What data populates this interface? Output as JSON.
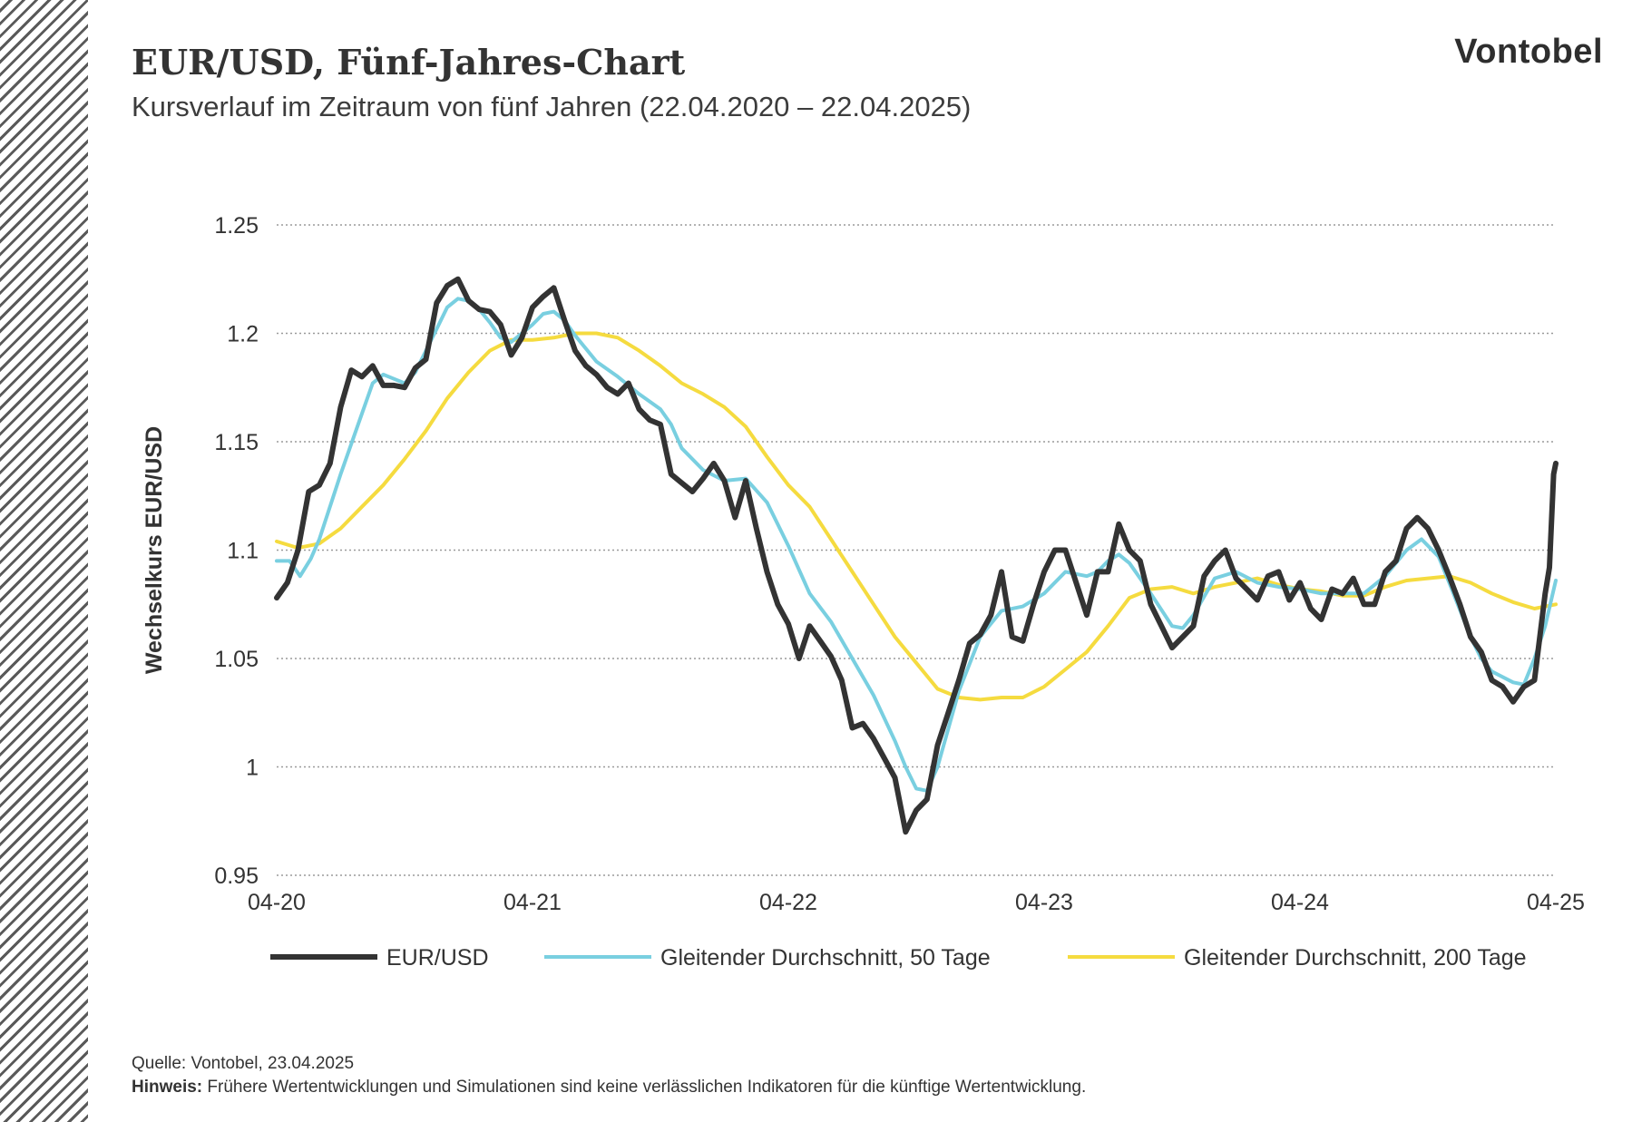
{
  "header": {
    "title": "EUR/USD, Fünf-Jahres-Chart",
    "subtitle": "Kursverlauf im Zeitraum von fünf Jahren (22.04.2020 – 22.04.2025)",
    "brand": "Vontobel"
  },
  "footer": {
    "source_label": "Quelle:",
    "source_text": "Vontobel, 23.04.2025",
    "note_label": "Hinweis:",
    "note_text": "Frühere Wertentwicklungen und Simulationen sind keine verlässlichen Indikatoren für die künftige Wertentwicklung."
  },
  "colors": {
    "eurusd": "#333333",
    "ma50": "#79cfe0",
    "ma200": "#f5db3f",
    "grid": "#9a9a9a",
    "hatch": "#5a5a5a"
  },
  "chart_data": {
    "type": "line",
    "ylabel": "Wechselkurs EUR/USD",
    "ylim": [
      0.95,
      1.25
    ],
    "yticks": [
      1.25,
      1.2,
      1.15,
      1.1,
      1.05,
      1,
      0.95
    ],
    "ytick_labels": [
      "1.25",
      "1.2",
      "1.15",
      "1.1",
      "1.05",
      "1",
      "0.95"
    ],
    "xlim": [
      0,
      60
    ],
    "xticks": [
      0,
      12,
      24,
      36,
      48,
      60
    ],
    "xtick_labels": [
      "04-20",
      "04-21",
      "04-22",
      "04-23",
      "04-24",
      "04-25"
    ],
    "grid": "horizontal dotted",
    "legend_position": "bottom",
    "series": [
      {
        "name": "EUR/USD",
        "color_key": "eurusd",
        "points": [
          [
            0,
            1.078
          ],
          [
            0.5,
            1.085
          ],
          [
            1,
            1.1
          ],
          [
            1.5,
            1.127
          ],
          [
            2,
            1.13
          ],
          [
            2.5,
            1.14
          ],
          [
            3,
            1.166
          ],
          [
            3.5,
            1.183
          ],
          [
            4,
            1.18
          ],
          [
            4.5,
            1.185
          ],
          [
            5,
            1.176
          ],
          [
            5.5,
            1.176
          ],
          [
            6,
            1.175
          ],
          [
            6.5,
            1.184
          ],
          [
            7,
            1.188
          ],
          [
            7.5,
            1.214
          ],
          [
            8,
            1.222
          ],
          [
            8.5,
            1.225
          ],
          [
            9,
            1.215
          ],
          [
            9.5,
            1.211
          ],
          [
            10,
            1.21
          ],
          [
            10.5,
            1.204
          ],
          [
            11,
            1.19
          ],
          [
            11.5,
            1.198
          ],
          [
            12,
            1.212
          ],
          [
            12.5,
            1.217
          ],
          [
            13,
            1.221
          ],
          [
            13.5,
            1.206
          ],
          [
            14,
            1.192
          ],
          [
            14.5,
            1.185
          ],
          [
            15,
            1.181
          ],
          [
            15.5,
            1.175
          ],
          [
            16,
            1.172
          ],
          [
            16.5,
            1.177
          ],
          [
            17,
            1.165
          ],
          [
            17.5,
            1.16
          ],
          [
            18,
            1.158
          ],
          [
            18.5,
            1.135
          ],
          [
            19,
            1.131
          ],
          [
            19.5,
            1.127
          ],
          [
            20,
            1.133
          ],
          [
            20.5,
            1.14
          ],
          [
            21,
            1.132
          ],
          [
            21.5,
            1.115
          ],
          [
            22,
            1.132
          ],
          [
            22.5,
            1.11
          ],
          [
            23,
            1.09
          ],
          [
            23.5,
            1.075
          ],
          [
            24,
            1.066
          ],
          [
            24.5,
            1.05
          ],
          [
            25,
            1.065
          ],
          [
            25.5,
            1.058
          ],
          [
            26,
            1.051
          ],
          [
            26.5,
            1.04
          ],
          [
            27,
            1.018
          ],
          [
            27.5,
            1.02
          ],
          [
            28,
            1.013
          ],
          [
            28.5,
            1.004
          ],
          [
            29,
            0.995
          ],
          [
            29.5,
            0.97
          ],
          [
            30,
            0.98
          ],
          [
            30.5,
            0.985
          ],
          [
            31,
            1.01
          ],
          [
            31.5,
            1.025
          ],
          [
            32,
            1.04
          ],
          [
            32.5,
            1.057
          ],
          [
            33,
            1.061
          ],
          [
            33.5,
            1.07
          ],
          [
            34,
            1.09
          ],
          [
            34.5,
            1.06
          ],
          [
            35,
            1.058
          ],
          [
            35.5,
            1.075
          ],
          [
            36,
            1.09
          ],
          [
            36.5,
            1.1
          ],
          [
            37,
            1.1
          ],
          [
            37.5,
            1.085
          ],
          [
            38,
            1.07
          ],
          [
            38.5,
            1.09
          ],
          [
            39,
            1.09
          ],
          [
            39.5,
            1.112
          ],
          [
            40,
            1.1
          ],
          [
            40.5,
            1.095
          ],
          [
            41,
            1.075
          ],
          [
            41.5,
            1.065
          ],
          [
            42,
            1.055
          ],
          [
            42.5,
            1.06
          ],
          [
            43,
            1.065
          ],
          [
            43.5,
            1.088
          ],
          [
            44,
            1.095
          ],
          [
            44.5,
            1.1
          ],
          [
            45,
            1.087
          ],
          [
            45.5,
            1.082
          ],
          [
            46,
            1.077
          ],
          [
            46.5,
            1.088
          ],
          [
            47,
            1.09
          ],
          [
            47.5,
            1.077
          ],
          [
            48,
            1.085
          ],
          [
            48.5,
            1.073
          ],
          [
            49,
            1.068
          ],
          [
            49.5,
            1.082
          ],
          [
            50,
            1.08
          ],
          [
            50.5,
            1.087
          ],
          [
            51,
            1.075
          ],
          [
            51.5,
            1.075
          ],
          [
            52,
            1.09
          ],
          [
            52.5,
            1.095
          ],
          [
            53,
            1.11
          ],
          [
            53.5,
            1.115
          ],
          [
            54,
            1.11
          ],
          [
            54.5,
            1.1
          ],
          [
            55,
            1.088
          ],
          [
            55.5,
            1.075
          ],
          [
            56,
            1.06
          ],
          [
            56.5,
            1.053
          ],
          [
            57,
            1.04
          ],
          [
            57.5,
            1.037
          ],
          [
            58,
            1.03
          ],
          [
            58.5,
            1.037
          ],
          [
            59,
            1.04
          ],
          [
            59.5,
            1.08
          ],
          [
            59.7,
            1.092
          ],
          [
            59.9,
            1.135
          ],
          [
            60,
            1.14
          ]
        ]
      },
      {
        "name": "Gleitender Durchschnitt, 50 Tage",
        "color_key": "ma50",
        "points": [
          [
            0,
            1.095
          ],
          [
            0.6,
            1.095
          ],
          [
            1.1,
            1.088
          ],
          [
            1.6,
            1.096
          ],
          [
            2,
            1.105
          ],
          [
            3,
            1.135
          ],
          [
            4,
            1.163
          ],
          [
            4.5,
            1.177
          ],
          [
            5,
            1.181
          ],
          [
            5.5,
            1.179
          ],
          [
            6,
            1.177
          ],
          [
            6.5,
            1.182
          ],
          [
            7,
            1.192
          ],
          [
            7.5,
            1.202
          ],
          [
            8,
            1.212
          ],
          [
            8.5,
            1.216
          ],
          [
            9,
            1.215
          ],
          [
            9.5,
            1.211
          ],
          [
            10,
            1.205
          ],
          [
            10.5,
            1.198
          ],
          [
            11,
            1.196
          ],
          [
            11.5,
            1.2
          ],
          [
            12,
            1.204
          ],
          [
            12.5,
            1.209
          ],
          [
            13,
            1.21
          ],
          [
            13.5,
            1.206
          ],
          [
            14,
            1.199
          ],
          [
            15,
            1.187
          ],
          [
            16,
            1.18
          ],
          [
            17,
            1.172
          ],
          [
            18,
            1.165
          ],
          [
            18.5,
            1.158
          ],
          [
            19,
            1.147
          ],
          [
            20,
            1.137
          ],
          [
            21,
            1.132
          ],
          [
            22,
            1.133
          ],
          [
            23,
            1.122
          ],
          [
            24,
            1.102
          ],
          [
            25,
            1.08
          ],
          [
            26,
            1.067
          ],
          [
            27,
            1.05
          ],
          [
            28,
            1.033
          ],
          [
            29,
            1.012
          ],
          [
            29.5,
            1.0
          ],
          [
            30,
            0.99
          ],
          [
            30.5,
            0.989
          ],
          [
            31,
            1.0
          ],
          [
            32,
            1.035
          ],
          [
            33,
            1.06
          ],
          [
            34,
            1.072
          ],
          [
            35,
            1.074
          ],
          [
            36,
            1.08
          ],
          [
            37,
            1.09
          ],
          [
            38,
            1.088
          ],
          [
            38.5,
            1.09
          ],
          [
            39,
            1.095
          ],
          [
            39.5,
            1.098
          ],
          [
            40,
            1.094
          ],
          [
            41,
            1.08
          ],
          [
            42,
            1.065
          ],
          [
            42.5,
            1.064
          ],
          [
            43,
            1.07
          ],
          [
            44,
            1.087
          ],
          [
            45,
            1.09
          ],
          [
            46,
            1.085
          ],
          [
            47,
            1.083
          ],
          [
            48,
            1.082
          ],
          [
            49,
            1.08
          ],
          [
            50,
            1.08
          ],
          [
            51,
            1.08
          ],
          [
            52,
            1.088
          ],
          [
            53,
            1.1
          ],
          [
            53.7,
            1.105
          ],
          [
            54.5,
            1.097
          ],
          [
            55,
            1.085
          ],
          [
            56,
            1.06
          ],
          [
            56.5,
            1.05
          ],
          [
            57,
            1.044
          ],
          [
            58,
            1.039
          ],
          [
            58.5,
            1.038
          ],
          [
            59,
            1.05
          ],
          [
            59.5,
            1.065
          ],
          [
            60,
            1.086
          ]
        ]
      },
      {
        "name": "Gleitender Durchschnitt, 200 Tage",
        "color_key": "ma200",
        "points": [
          [
            0,
            1.104
          ],
          [
            1,
            1.101
          ],
          [
            2,
            1.103
          ],
          [
            3,
            1.11
          ],
          [
            4,
            1.12
          ],
          [
            5,
            1.13
          ],
          [
            6,
            1.142
          ],
          [
            7,
            1.155
          ],
          [
            8,
            1.17
          ],
          [
            9,
            1.182
          ],
          [
            10,
            1.192
          ],
          [
            11,
            1.197
          ],
          [
            12,
            1.197
          ],
          [
            13,
            1.198
          ],
          [
            14,
            1.2
          ],
          [
            15,
            1.2
          ],
          [
            16,
            1.198
          ],
          [
            17,
            1.192
          ],
          [
            18,
            1.185
          ],
          [
            19,
            1.177
          ],
          [
            20,
            1.172
          ],
          [
            21,
            1.166
          ],
          [
            22,
            1.157
          ],
          [
            23,
            1.143
          ],
          [
            24,
            1.13
          ],
          [
            25,
            1.12
          ],
          [
            26,
            1.105
          ],
          [
            27,
            1.09
          ],
          [
            28,
            1.075
          ],
          [
            29,
            1.06
          ],
          [
            30,
            1.048
          ],
          [
            31,
            1.036
          ],
          [
            32,
            1.032
          ],
          [
            33,
            1.031
          ],
          [
            34,
            1.032
          ],
          [
            35,
            1.032
          ],
          [
            36,
            1.037
          ],
          [
            37,
            1.045
          ],
          [
            38,
            1.053
          ],
          [
            39,
            1.065
          ],
          [
            40,
            1.078
          ],
          [
            41,
            1.082
          ],
          [
            42,
            1.083
          ],
          [
            43,
            1.08
          ],
          [
            44,
            1.083
          ],
          [
            45,
            1.085
          ],
          [
            46,
            1.087
          ],
          [
            47,
            1.084
          ],
          [
            48,
            1.082
          ],
          [
            49,
            1.081
          ],
          [
            50,
            1.079
          ],
          [
            51,
            1.079
          ],
          [
            52,
            1.083
          ],
          [
            53,
            1.086
          ],
          [
            54,
            1.087
          ],
          [
            55,
            1.088
          ],
          [
            56,
            1.085
          ],
          [
            57,
            1.08
          ],
          [
            58,
            1.076
          ],
          [
            59,
            1.073
          ],
          [
            60,
            1.075
          ]
        ]
      }
    ]
  }
}
